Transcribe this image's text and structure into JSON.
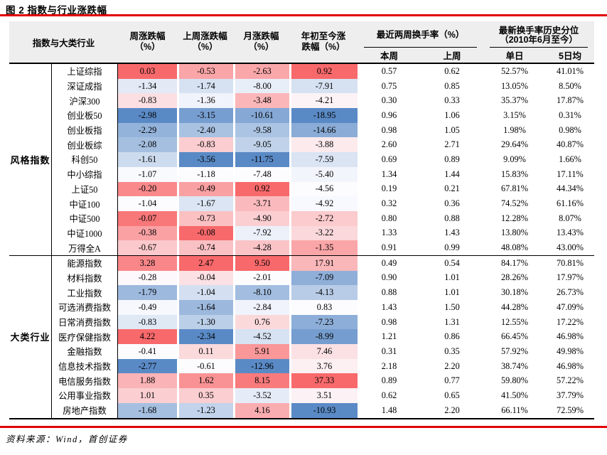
{
  "title": "图 2 指数与行业涨跌幅",
  "source": "资料来源：Wind，首创证券",
  "colors": {
    "accent_line": "#E00000",
    "header_bg": "#EFEEEE",
    "heat_max": "#F8696B",
    "heat_mid": "#FCFCFF",
    "heat_min": "#5A8AC6"
  },
  "table": {
    "col1_header": "指数与大类行业",
    "pct_headers": [
      {
        "line1": "周涨跌幅",
        "line2": "（%）"
      },
      {
        "line1": "上周涨跌幅",
        "line2": "（%）"
      },
      {
        "line1": "月涨跌幅",
        "line2": "（%）"
      },
      {
        "line1": "年初至今涨",
        "line2": "跌幅（%）"
      }
    ],
    "turnover_group": {
      "label": "最近两周换手率（%）",
      "sub": [
        "本周",
        "上周"
      ]
    },
    "hist_group": {
      "line1": "最新换手率历史分位",
      "line2": "（2010年6月..至今）",
      "sub": [
        "单日",
        "5日均"
      ]
    },
    "groups": [
      {
        "label": "风格指数",
        "rows": [
          {
            "name": "上证综指",
            "pct": [
              "0.03",
              "-0.53",
              "-2.63",
              "0.92"
            ],
            "turnover": [
              "0.57",
              "0.62"
            ],
            "hist": [
              "52.57%",
              "41.01%"
            ]
          },
          {
            "name": "深证成指",
            "pct": [
              "-1.34",
              "-1.74",
              "-8.00",
              "-7.91"
            ],
            "turnover": [
              "0.75",
              "0.85"
            ],
            "hist": [
              "13.05%",
              "8.50%"
            ]
          },
          {
            "name": "沪深300",
            "pct": [
              "-0.83",
              "-1.36",
              "-3.48",
              "-4.21"
            ],
            "turnover": [
              "0.30",
              "0.33"
            ],
            "hist": [
              "35.37%",
              "17.87%"
            ]
          },
          {
            "name": "创业板50",
            "pct": [
              "-2.98",
              "-3.15",
              "-10.61",
              "-18.95"
            ],
            "turnover": [
              "0.96",
              "1.06"
            ],
            "hist": [
              "3.15%",
              "0.31%"
            ]
          },
          {
            "name": "创业板指",
            "pct": [
              "-2.29",
              "-2.40",
              "-9.58",
              "-14.66"
            ],
            "turnover": [
              "0.98",
              "1.05"
            ],
            "hist": [
              "1.98%",
              "0.98%"
            ]
          },
          {
            "name": "创业板综",
            "pct": [
              "-2.08",
              "-0.83",
              "-9.05",
              "-3.88"
            ],
            "turnover": [
              "2.60",
              "2.71"
            ],
            "hist": [
              "29.64%",
              "40.87%"
            ]
          },
          {
            "name": "科创50",
            "pct": [
              "-1.61",
              "-3.56",
              "-11.75",
              "-7.59"
            ],
            "turnover": [
              "0.69",
              "0.89"
            ],
            "hist": [
              "9.09%",
              "1.66%"
            ]
          },
          {
            "name": "中小综指",
            "pct": [
              "-1.07",
              "-1.18",
              "-7.48",
              "-5.40"
            ],
            "turnover": [
              "1.34",
              "1.44"
            ],
            "hist": [
              "15.83%",
              "17.11%"
            ]
          },
          {
            "name": "上证50",
            "pct": [
              "-0.20",
              "-0.49",
              "0.92",
              "-4.56"
            ],
            "turnover": [
              "0.19",
              "0.21"
            ],
            "hist": [
              "67.81%",
              "44.34%"
            ]
          },
          {
            "name": "中证100",
            "pct": [
              "-1.04",
              "-1.67",
              "-3.71",
              "-4.92"
            ],
            "turnover": [
              "0.32",
              "0.36"
            ],
            "hist": [
              "74.52%",
              "61.16%"
            ]
          },
          {
            "name": "中证500",
            "pct": [
              "-0.07",
              "-0.73",
              "-4.90",
              "-2.72"
            ],
            "turnover": [
              "0.80",
              "0.88"
            ],
            "hist": [
              "12.28%",
              "8.07%"
            ]
          },
          {
            "name": "中证1000",
            "pct": [
              "-0.38",
              "-0.08",
              "-7.92",
              "-3.22"
            ],
            "turnover": [
              "1.33",
              "1.43"
            ],
            "hist": [
              "13.80%",
              "13.43%"
            ]
          },
          {
            "name": "万得全A",
            "pct": [
              "-0.67",
              "-0.74",
              "-4.28",
              "-1.35"
            ],
            "turnover": [
              "0.91",
              "0.99"
            ],
            "hist": [
              "48.08%",
              "43.00%"
            ]
          }
        ]
      },
      {
        "label": "大类行业",
        "rows": [
          {
            "name": "能源指数",
            "pct": [
              "3.28",
              "2.47",
              "9.50",
              "17.91"
            ],
            "turnover": [
              "0.49",
              "0.54"
            ],
            "hist": [
              "84.17%",
              "70.81%"
            ]
          },
          {
            "name": "材料指数",
            "pct": [
              "-0.28",
              "-0.04",
              "-2.01",
              "-7.09"
            ],
            "turnover": [
              "0.90",
              "1.01"
            ],
            "hist": [
              "28.26%",
              "17.97%"
            ]
          },
          {
            "name": "工业指数",
            "pct": [
              "-1.79",
              "-1.04",
              "-8.10",
              "-4.13"
            ],
            "turnover": [
              "0.88",
              "1.01"
            ],
            "hist": [
              "30.18%",
              "26.73%"
            ]
          },
          {
            "name": "可选消费指数",
            "pct": [
              "-0.49",
              "-1.64",
              "-2.84",
              "0.83"
            ],
            "turnover": [
              "1.43",
              "1.50"
            ],
            "hist": [
              "44.28%",
              "47.09%"
            ]
          },
          {
            "name": "日常消费指数",
            "pct": [
              "-0.83",
              "-1.30",
              "0.76",
              "-7.23"
            ],
            "turnover": [
              "0.98",
              "1.31"
            ],
            "hist": [
              "12.55%",
              "17.22%"
            ]
          },
          {
            "name": "医疗保健指数",
            "pct": [
              "4.22",
              "-2.34",
              "-4.52",
              "-8.99"
            ],
            "turnover": [
              "1.21",
              "0.86"
            ],
            "hist": [
              "66.45%",
              "46.98%"
            ]
          },
          {
            "name": "金融指数",
            "pct": [
              "-0.41",
              "0.11",
              "5.91",
              "7.46"
            ],
            "turnover": [
              "0.31",
              "0.35"
            ],
            "hist": [
              "57.92%",
              "49.98%"
            ]
          },
          {
            "name": "信息技术指数",
            "pct": [
              "-2.77",
              "-0.61",
              "-12.96",
              "3.76"
            ],
            "turnover": [
              "2.18",
              "2.20"
            ],
            "hist": [
              "38.74%",
              "46.98%"
            ]
          },
          {
            "name": "电信服务指数",
            "pct": [
              "1.88",
              "1.62",
              "8.15",
              "37.33"
            ],
            "turnover": [
              "0.89",
              "0.77"
            ],
            "hist": [
              "59.80%",
              "57.22%"
            ]
          },
          {
            "name": "公用事业指数",
            "pct": [
              "1.01",
              "0.35",
              "-3.52",
              "3.51"
            ],
            "turnover": [
              "0.62",
              "0.65"
            ],
            "hist": [
              "41.50%",
              "37.79%"
            ]
          },
          {
            "name": "房地产指数",
            "pct": [
              "-1.68",
              "-1.23",
              "4.16",
              "-10.93"
            ],
            "turnover": [
              "1.48",
              "2.20"
            ],
            "hist": [
              "66.11%",
              "72.59%"
            ]
          }
        ]
      }
    ]
  }
}
